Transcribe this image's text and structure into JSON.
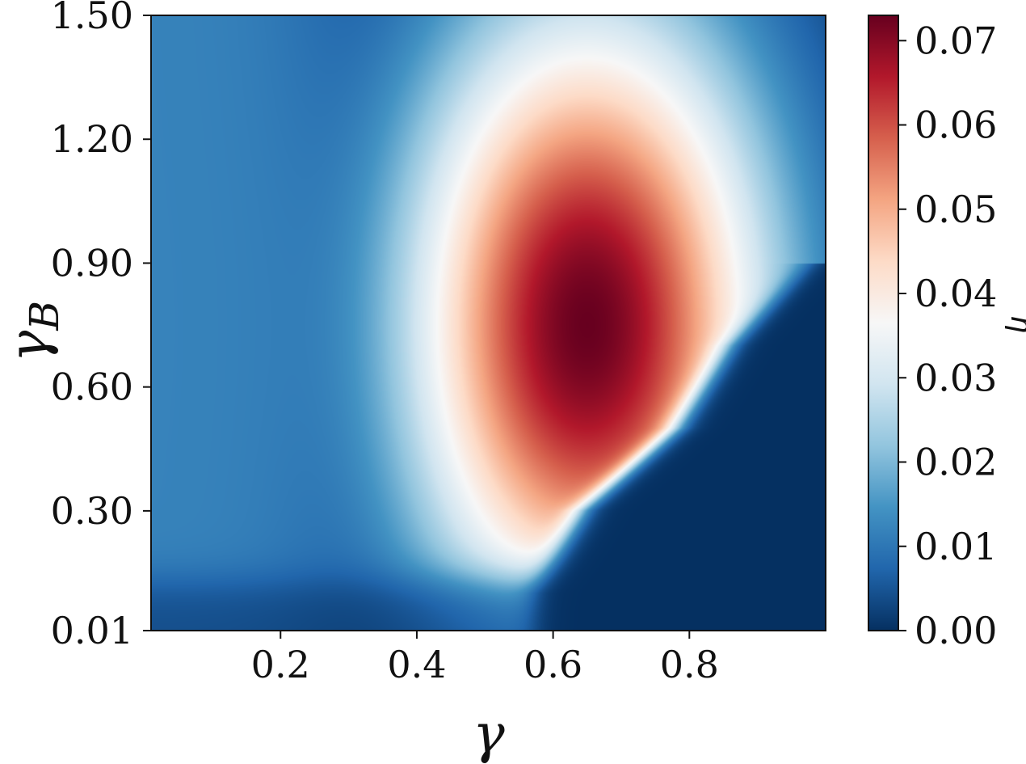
{
  "chart_data": {
    "type": "heatmap",
    "title": "",
    "xlabel": "γ",
    "ylabel": "γ_B",
    "ylabel_main": "γ",
    "ylabel_sub": "B",
    "colorbar_label": "η",
    "colormap": "RdBu_r",
    "colormap_stops": [
      "#053061",
      "#2166ac",
      "#4393c3",
      "#92c5de",
      "#d1e5f0",
      "#f7f7f7",
      "#fddbc7",
      "#f4a582",
      "#d6604d",
      "#b2182b",
      "#67001f"
    ],
    "xlim": [
      0.01,
      1.0
    ],
    "ylim": [
      0.01,
      1.5
    ],
    "zlim": [
      0.0,
      0.073
    ],
    "x_ticks": [
      0.2,
      0.4,
      0.6,
      0.8
    ],
    "x_tick_labels": [
      "0.2",
      "0.4",
      "0.6",
      "0.8"
    ],
    "y_ticks": [
      0.01,
      0.3,
      0.6,
      0.9,
      1.2,
      1.5
    ],
    "y_tick_labels": [
      "0.01",
      "0.30",
      "0.60",
      "0.90",
      "1.20",
      "1.50"
    ],
    "colorbar_ticks": [
      0.0,
      0.01,
      0.02,
      0.03,
      0.04,
      0.05,
      0.06,
      0.07
    ],
    "colorbar_tick_labels": [
      "0.00",
      "0.01",
      "0.02",
      "0.03",
      "0.04",
      "0.05",
      "0.06",
      "0.07"
    ],
    "peak": {
      "x": 0.65,
      "y": 0.75,
      "value": 0.073
    },
    "zero_region_boundary": [
      {
        "y": 0.01,
        "x": 0.57
      },
      {
        "y": 0.1,
        "x": 0.57
      },
      {
        "y": 0.3,
        "x": 0.64
      },
      {
        "y": 0.5,
        "x": 0.78
      },
      {
        "y": 0.7,
        "x": 0.86
      },
      {
        "y": 0.9,
        "x": 0.98
      }
    ],
    "grid": false
  }
}
